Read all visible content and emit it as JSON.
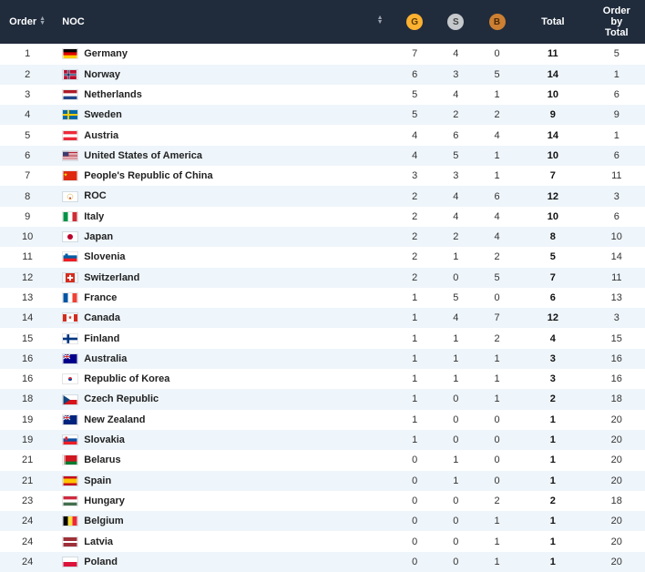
{
  "header": {
    "order": "Order",
    "noc": "NOC",
    "gold": "G",
    "silver": "S",
    "bronze": "B",
    "total": "Total",
    "obt_l1": "Order",
    "obt_l2": "by",
    "obt_l3": "Total"
  },
  "colors": {
    "header_bg": "#202c3c",
    "row_even_bg": "#eef5fb",
    "row_odd_bg": "#ffffff",
    "gold": "#fcb131",
    "silver": "#c5c9cc",
    "bronze": "#cd7f32"
  },
  "rows": [
    {
      "order": 1,
      "country": "Germany",
      "flag": "de",
      "g": 7,
      "s": 4,
      "b": 0,
      "total": 11,
      "obt": 5
    },
    {
      "order": 2,
      "country": "Norway",
      "flag": "no",
      "g": 6,
      "s": 3,
      "b": 5,
      "total": 14,
      "obt": 1
    },
    {
      "order": 3,
      "country": "Netherlands",
      "flag": "nl",
      "g": 5,
      "s": 4,
      "b": 1,
      "total": 10,
      "obt": 6
    },
    {
      "order": 4,
      "country": "Sweden",
      "flag": "se",
      "g": 5,
      "s": 2,
      "b": 2,
      "total": 9,
      "obt": 9
    },
    {
      "order": 5,
      "country": "Austria",
      "flag": "at",
      "g": 4,
      "s": 6,
      "b": 4,
      "total": 14,
      "obt": 1
    },
    {
      "order": 6,
      "country": "United States of America",
      "flag": "us",
      "g": 4,
      "s": 5,
      "b": 1,
      "total": 10,
      "obt": 6
    },
    {
      "order": 7,
      "country": "People's Republic of China",
      "flag": "cn",
      "g": 3,
      "s": 3,
      "b": 1,
      "total": 7,
      "obt": 11
    },
    {
      "order": 8,
      "country": "ROC",
      "flag": "roc",
      "g": 2,
      "s": 4,
      "b": 6,
      "total": 12,
      "obt": 3
    },
    {
      "order": 9,
      "country": "Italy",
      "flag": "it",
      "g": 2,
      "s": 4,
      "b": 4,
      "total": 10,
      "obt": 6
    },
    {
      "order": 10,
      "country": "Japan",
      "flag": "jp",
      "g": 2,
      "s": 2,
      "b": 4,
      "total": 8,
      "obt": 10
    },
    {
      "order": 11,
      "country": "Slovenia",
      "flag": "si",
      "g": 2,
      "s": 1,
      "b": 2,
      "total": 5,
      "obt": 14
    },
    {
      "order": 12,
      "country": "Switzerland",
      "flag": "ch",
      "g": 2,
      "s": 0,
      "b": 5,
      "total": 7,
      "obt": 11
    },
    {
      "order": 13,
      "country": "France",
      "flag": "fr",
      "g": 1,
      "s": 5,
      "b": 0,
      "total": 6,
      "obt": 13
    },
    {
      "order": 14,
      "country": "Canada",
      "flag": "ca",
      "g": 1,
      "s": 4,
      "b": 7,
      "total": 12,
      "obt": 3
    },
    {
      "order": 15,
      "country": "Finland",
      "flag": "fi",
      "g": 1,
      "s": 1,
      "b": 2,
      "total": 4,
      "obt": 15
    },
    {
      "order": 16,
      "country": "Australia",
      "flag": "au",
      "g": 1,
      "s": 1,
      "b": 1,
      "total": 3,
      "obt": 16
    },
    {
      "order": 16,
      "country": "Republic of Korea",
      "flag": "kr",
      "g": 1,
      "s": 1,
      "b": 1,
      "total": 3,
      "obt": 16
    },
    {
      "order": 18,
      "country": "Czech Republic",
      "flag": "cz",
      "g": 1,
      "s": 0,
      "b": 1,
      "total": 2,
      "obt": 18
    },
    {
      "order": 19,
      "country": "New Zealand",
      "flag": "nz",
      "g": 1,
      "s": 0,
      "b": 0,
      "total": 1,
      "obt": 20
    },
    {
      "order": 19,
      "country": "Slovakia",
      "flag": "sk",
      "g": 1,
      "s": 0,
      "b": 0,
      "total": 1,
      "obt": 20
    },
    {
      "order": 21,
      "country": "Belarus",
      "flag": "by",
      "g": 0,
      "s": 1,
      "b": 0,
      "total": 1,
      "obt": 20
    },
    {
      "order": 21,
      "country": "Spain",
      "flag": "es",
      "g": 0,
      "s": 1,
      "b": 0,
      "total": 1,
      "obt": 20
    },
    {
      "order": 23,
      "country": "Hungary",
      "flag": "hu",
      "g": 0,
      "s": 0,
      "b": 2,
      "total": 2,
      "obt": 18
    },
    {
      "order": 24,
      "country": "Belgium",
      "flag": "be",
      "g": 0,
      "s": 0,
      "b": 1,
      "total": 1,
      "obt": 20
    },
    {
      "order": 24,
      "country": "Latvia",
      "flag": "lv",
      "g": 0,
      "s": 0,
      "b": 1,
      "total": 1,
      "obt": 20
    },
    {
      "order": 24,
      "country": "Poland",
      "flag": "pl",
      "g": 0,
      "s": 0,
      "b": 1,
      "total": 1,
      "obt": 20
    }
  ]
}
